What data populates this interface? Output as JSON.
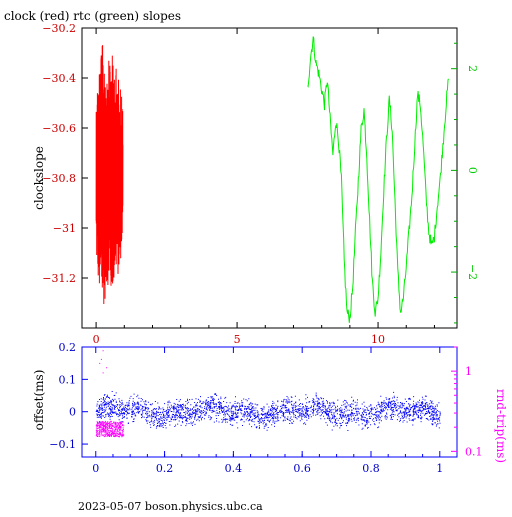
{
  "header": {
    "title": "clock (red) rtc (green) slopes"
  },
  "footer": {
    "caption": "2023-05-07 boson.physics.ubc.ca"
  },
  "colors": {
    "clock": "#ff0000",
    "rtc": "#00ee00",
    "offset": "#0000ff",
    "rndtrip": "#ff00ff",
    "axis": "#000000"
  },
  "chart_data": [
    {
      "type": "line",
      "title": "clock (red) rtc (green) slopes",
      "ylabel": "clockslope",
      "xlim": [
        -0.5,
        12.8
      ],
      "ylim": [
        -31.4,
        -30.2
      ],
      "y2lim": [
        -3.1,
        2.8
      ],
      "xticks": [
        0,
        5,
        10
      ],
      "yticks": [
        -30.2,
        -30.4,
        -30.6,
        -30.8,
        -31,
        -31.2
      ],
      "y2ticks": [
        2,
        0,
        -2
      ],
      "grid": false,
      "series": [
        {
          "name": "clock",
          "axis": "left",
          "x_range": [
            0.0,
            0.95
          ],
          "envelope_x": [
            0.0,
            0.1,
            0.2,
            0.3,
            0.4,
            0.5,
            0.6,
            0.7,
            0.8,
            0.9,
            0.95
          ],
          "envelope_ymax": [
            -30.47,
            -30.34,
            -30.26,
            -30.28,
            -30.36,
            -30.3,
            -30.31,
            -30.35,
            -30.4,
            -30.44,
            -30.5
          ],
          "envelope_ymin": [
            -31.12,
            -31.26,
            -31.34,
            -31.3,
            -31.22,
            -31.28,
            -31.25,
            -31.18,
            -31.2,
            -31.1,
            -31.08
          ]
        },
        {
          "name": "rtc",
          "axis": "right",
          "x": [
            7.5,
            7.6,
            7.7,
            7.8,
            7.9,
            8.0,
            8.1,
            8.2,
            8.3,
            8.4,
            8.5,
            8.6,
            8.7,
            8.8,
            8.9,
            9.0,
            9.1,
            9.2,
            9.3,
            9.4,
            9.5,
            9.6,
            9.7,
            9.8,
            9.9,
            10.0,
            10.1,
            10.2,
            10.3,
            10.4,
            10.5,
            10.6,
            10.7,
            10.8,
            10.9,
            11.0,
            11.1,
            11.2,
            11.3,
            11.4,
            11.5,
            11.6,
            11.7,
            11.8,
            11.9,
            12.0,
            12.1,
            12.2,
            12.3,
            12.4,
            12.5
          ],
          "y": [
            1.6,
            2.2,
            2.6,
            2.1,
            1.9,
            1.6,
            1.3,
            1.8,
            1.0,
            0.3,
            1.0,
            0.6,
            -0.2,
            -1.8,
            -2.8,
            -2.9,
            -2.3,
            -1.2,
            -0.2,
            0.8,
            1.2,
            0.3,
            -1.0,
            -2.2,
            -2.8,
            -2.5,
            -1.6,
            -0.4,
            0.6,
            1.4,
            0.8,
            -0.6,
            -2.0,
            -2.8,
            -2.5,
            -1.9,
            -1.2,
            -0.5,
            0.5,
            1.5,
            1.3,
            0.5,
            -0.5,
            -1.2,
            -1.5,
            -1.3,
            -0.7,
            -0.2,
            0.5,
            1.2,
            1.8
          ]
        }
      ]
    },
    {
      "type": "scatter",
      "ylabel": "offset(ms)",
      "y2label": "rnd-trip(ms)",
      "xlim": [
        -0.04,
        1.05
      ],
      "ylim": [
        -0.14,
        0.2
      ],
      "y2lim": [
        0.085,
        2.0
      ],
      "y2scale": "log",
      "xticks": [
        0,
        0.2,
        0.4,
        0.6,
        0.8,
        1
      ],
      "yticks": [
        0.2,
        0.1,
        0,
        -0.1
      ],
      "y2ticks": [
        1,
        0.1
      ],
      "grid": false,
      "series": [
        {
          "name": "offset",
          "axis": "left",
          "x_range": [
            0,
            1
          ],
          "y_center": 0.0,
          "y_spread": 0.055
        },
        {
          "name": "rnd-trip",
          "axis": "right",
          "x_range": [
            0,
            0.08
          ],
          "y_center": 0.19,
          "y_spread_factor": 1.25,
          "outliers": [
            [
              0.01,
              1.25
            ],
            [
              0.015,
              1.4
            ],
            [
              0.02,
              1.8
            ],
            [
              0.03,
              1.1
            ],
            [
              0.02,
              0.95
            ]
          ]
        }
      ]
    }
  ]
}
